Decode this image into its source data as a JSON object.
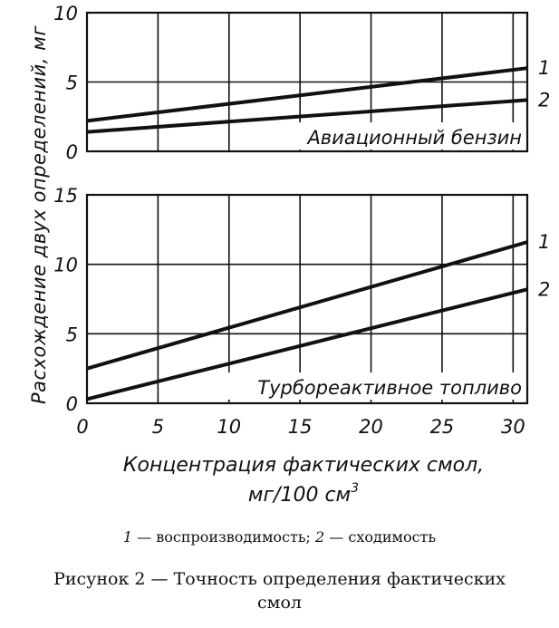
{
  "chart_data": [
    {
      "type": "line",
      "label": "Авиационный бензин",
      "x": [
        0,
        31
      ],
      "xlim": [
        0,
        31
      ],
      "ylim": [
        0,
        10
      ],
      "yticks": [
        0,
        5,
        10
      ],
      "series": [
        {
          "name": "1",
          "values": [
            2.2,
            6.0
          ]
        },
        {
          "name": "2",
          "values": [
            1.4,
            3.7
          ]
        }
      ]
    },
    {
      "type": "line",
      "label": "Турбореактивное топливо",
      "x": [
        0,
        31
      ],
      "xlim": [
        0,
        31
      ],
      "ylim": [
        0,
        15
      ],
      "yticks": [
        0,
        5,
        10,
        15
      ],
      "xticks": [
        "0",
        "5",
        "10",
        "15",
        "20",
        "25",
        "30"
      ],
      "xlabel_line1": "Концентрация фактических смол,",
      "xlabel_line2": "мг/100 см",
      "xlabel_sup": "3",
      "series": [
        {
          "name": "1",
          "values": [
            2.5,
            11.6
          ]
        },
        {
          "name": "2",
          "values": [
            0.3,
            8.2
          ]
        }
      ]
    }
  ],
  "ylabel": "Расхождение двух определений, мг",
  "legend": {
    "n1": "1",
    "t1": " — воспроизводимость; ",
    "n2": "2",
    "t2": " — сходимость"
  },
  "caption": {
    "line1": "Рисунок 2 — Точность определения фактических",
    "line2": "смол"
  }
}
